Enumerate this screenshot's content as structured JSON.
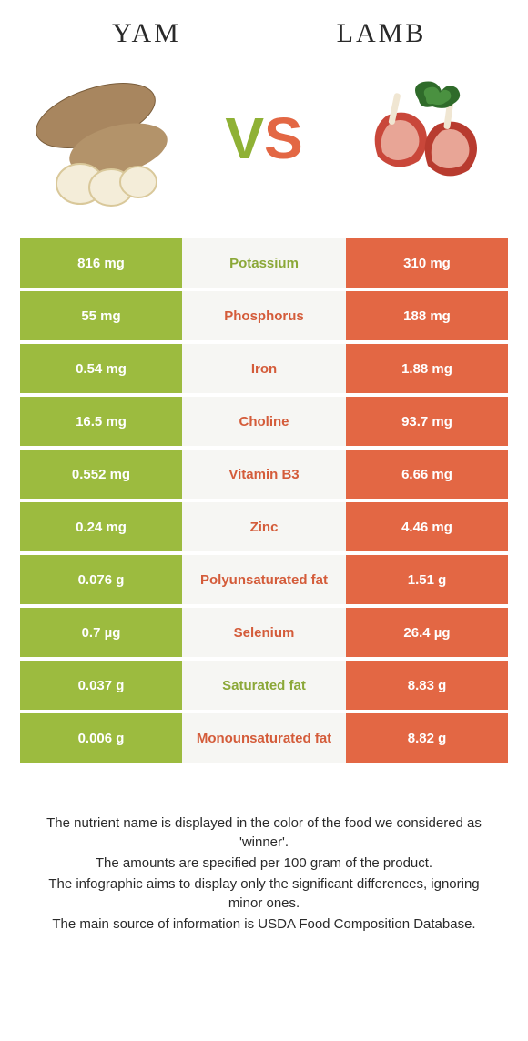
{
  "food_left": {
    "title": "YAM"
  },
  "food_right": {
    "title": "LAMB"
  },
  "vs": {
    "v": "V",
    "s": "S"
  },
  "colors": {
    "left_bg": "#9cbb3f",
    "right_bg": "#e36744",
    "mid_bg": "#f6f6f3",
    "winner_left_text": "#8ba838",
    "winner_right_text": "#d45c3a"
  },
  "rows": [
    {
      "left": "816 mg",
      "nutrient": "Potassium",
      "right": "310 mg",
      "winner": "left"
    },
    {
      "left": "55 mg",
      "nutrient": "Phosphorus",
      "right": "188 mg",
      "winner": "right"
    },
    {
      "left": "0.54 mg",
      "nutrient": "Iron",
      "right": "1.88 mg",
      "winner": "right"
    },
    {
      "left": "16.5 mg",
      "nutrient": "Choline",
      "right": "93.7 mg",
      "winner": "right"
    },
    {
      "left": "0.552 mg",
      "nutrient": "Vitamin B3",
      "right": "6.66 mg",
      "winner": "right"
    },
    {
      "left": "0.24 mg",
      "nutrient": "Zinc",
      "right": "4.46 mg",
      "winner": "right"
    },
    {
      "left": "0.076 g",
      "nutrient": "Polyunsaturated fat",
      "right": "1.51 g",
      "winner": "right"
    },
    {
      "left": "0.7 µg",
      "nutrient": "Selenium",
      "right": "26.4 µg",
      "winner": "right"
    },
    {
      "left": "0.037 g",
      "nutrient": "Saturated fat",
      "right": "8.83 g",
      "winner": "left"
    },
    {
      "left": "0.006 g",
      "nutrient": "Monounsaturated fat",
      "right": "8.82 g",
      "winner": "right"
    }
  ],
  "footer": {
    "line1": "The nutrient name is displayed in the color of the food we considered as 'winner'.",
    "line2": "The amounts are specified per 100 gram of the product.",
    "line3": "The infographic aims to display only the significant differences, ignoring minor ones.",
    "line4": "The main source of information is USDA Food Composition Database."
  }
}
